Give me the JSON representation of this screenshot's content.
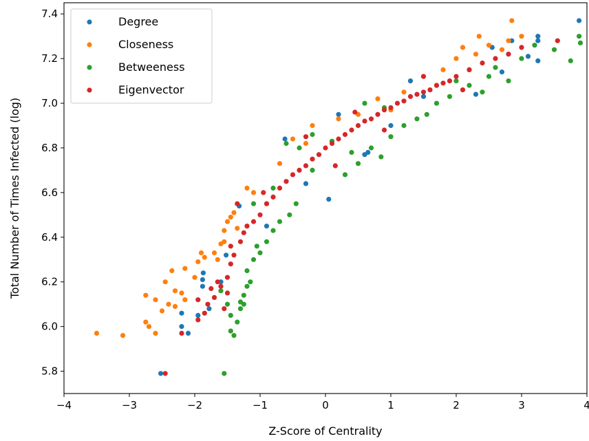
{
  "chart_data": {
    "type": "scatter",
    "title": "",
    "xlabel": "Z-Score of Centrality",
    "ylabel": "Total Number of Times Infected (log)",
    "xlim": [
      -4,
      4
    ],
    "ylim": [
      5.7,
      7.45
    ],
    "xticks": [
      -4,
      -3,
      -2,
      -1,
      0,
      1,
      2,
      3,
      4
    ],
    "xtick_labels": [
      "−4",
      "−3",
      "−2",
      "−1",
      "0",
      "1",
      "2",
      "3",
      "4"
    ],
    "yticks": [
      5.8,
      6.0,
      6.2,
      6.4,
      6.6,
      6.8,
      7.0,
      7.2,
      7.4
    ],
    "ytick_labels": [
      "5.8",
      "6.0",
      "6.2",
      "6.4",
      "6.6",
      "6.8",
      "7.0",
      "7.2",
      "7.4"
    ],
    "grid": false,
    "legend_position": "top-left",
    "series": [
      {
        "name": "Degree",
        "color": "#1f77b4",
        "points": [
          [
            -2.52,
            5.79
          ],
          [
            -2.2,
            6.06
          ],
          [
            -2.2,
            6.0
          ],
          [
            -2.1,
            5.97
          ],
          [
            -1.95,
            6.05
          ],
          [
            -1.88,
            6.18
          ],
          [
            -1.88,
            6.21
          ],
          [
            -1.87,
            6.24
          ],
          [
            -1.78,
            6.08
          ],
          [
            -1.6,
            6.2
          ],
          [
            -1.52,
            6.32
          ],
          [
            -1.32,
            6.54
          ],
          [
            -0.62,
            6.84
          ],
          [
            -0.3,
            6.64
          ],
          [
            0.05,
            6.57
          ],
          [
            0.6,
            6.77
          ],
          [
            0.65,
            6.78
          ],
          [
            1.3,
            7.1
          ],
          [
            1.5,
            7.03
          ],
          [
            2.3,
            7.04
          ],
          [
            2.55,
            7.25
          ],
          [
            2.7,
            7.14
          ],
          [
            2.8,
            7.22
          ],
          [
            2.85,
            7.28
          ],
          [
            3.1,
            7.21
          ],
          [
            3.25,
            7.3
          ],
          [
            3.25,
            7.28
          ],
          [
            3.25,
            7.19
          ],
          [
            3.88,
            7.37
          ],
          [
            0.2,
            6.95
          ],
          [
            -0.9,
            6.45
          ],
          [
            1.0,
            6.9
          ]
        ]
      },
      {
        "name": "Closeness",
        "color": "#ff7f0e",
        "points": [
          [
            -3.5,
            5.97
          ],
          [
            -3.1,
            5.96
          ],
          [
            -2.75,
            6.02
          ],
          [
            -2.7,
            6.0
          ],
          [
            -2.6,
            5.97
          ],
          [
            -2.75,
            6.14
          ],
          [
            -2.6,
            6.12
          ],
          [
            -2.45,
            6.2
          ],
          [
            -2.4,
            6.1
          ],
          [
            -2.3,
            6.16
          ],
          [
            -2.5,
            6.07
          ],
          [
            -2.3,
            6.09
          ],
          [
            -2.35,
            6.25
          ],
          [
            -2.15,
            6.12
          ],
          [
            -2.2,
            6.15
          ],
          [
            -2.15,
            6.26
          ],
          [
            -2.0,
            6.22
          ],
          [
            -1.95,
            6.29
          ],
          [
            -1.9,
            6.33
          ],
          [
            -1.85,
            6.31
          ],
          [
            -1.7,
            6.33
          ],
          [
            -1.65,
            6.3
          ],
          [
            -1.6,
            6.37
          ],
          [
            -1.55,
            6.43
          ],
          [
            -1.5,
            6.47
          ],
          [
            -1.45,
            6.49
          ],
          [
            -1.55,
            6.38
          ],
          [
            -1.4,
            6.51
          ],
          [
            -1.35,
            6.44
          ],
          [
            -1.2,
            6.62
          ],
          [
            -1.1,
            6.6
          ],
          [
            -0.7,
            6.73
          ],
          [
            -0.5,
            6.84
          ],
          [
            -0.2,
            6.9
          ],
          [
            0.2,
            6.93
          ],
          [
            0.8,
            7.02
          ],
          [
            1.2,
            7.05
          ],
          [
            1.5,
            7.12
          ],
          [
            1.8,
            7.15
          ],
          [
            2.0,
            7.2
          ],
          [
            2.1,
            7.25
          ],
          [
            2.3,
            7.22
          ],
          [
            2.35,
            7.3
          ],
          [
            2.5,
            7.26
          ],
          [
            2.7,
            7.24
          ],
          [
            2.8,
            7.28
          ],
          [
            2.85,
            7.37
          ],
          [
            3.0,
            7.3
          ],
          [
            1.0,
            6.97
          ],
          [
            0.5,
            6.95
          ],
          [
            -0.9,
            6.55
          ],
          [
            -1.2,
            6.45
          ],
          [
            1.7,
            7.08
          ],
          [
            2.2,
            7.15
          ],
          [
            -0.3,
            6.82
          ]
        ]
      },
      {
        "name": "Betweeness",
        "color": "#2ca02c",
        "points": [
          [
            -1.55,
            5.79
          ],
          [
            -1.45,
            5.98
          ],
          [
            -1.4,
            5.96
          ],
          [
            -1.35,
            6.02
          ],
          [
            -1.45,
            6.05
          ],
          [
            -1.3,
            6.08
          ],
          [
            -1.25,
            6.1
          ],
          [
            -1.3,
            6.11
          ],
          [
            -1.25,
            6.14
          ],
          [
            -1.2,
            6.18
          ],
          [
            -1.15,
            6.2
          ],
          [
            -1.2,
            6.25
          ],
          [
            -1.1,
            6.3
          ],
          [
            -1.05,
            6.36
          ],
          [
            -1.0,
            6.33
          ],
          [
            -0.9,
            6.38
          ],
          [
            -0.8,
            6.43
          ],
          [
            -0.7,
            6.47
          ],
          [
            -0.55,
            6.5
          ],
          [
            -0.45,
            6.55
          ],
          [
            -0.6,
            6.82
          ],
          [
            -0.4,
            6.8
          ],
          [
            -0.2,
            6.86
          ],
          [
            0.1,
            6.83
          ],
          [
            0.3,
            6.68
          ],
          [
            0.5,
            6.73
          ],
          [
            0.7,
            6.8
          ],
          [
            0.85,
            6.76
          ],
          [
            1.0,
            6.85
          ],
          [
            1.2,
            6.9
          ],
          [
            0.9,
            6.98
          ],
          [
            0.6,
            7.0
          ],
          [
            1.55,
            6.95
          ],
          [
            1.7,
            7.0
          ],
          [
            1.9,
            7.03
          ],
          [
            2.0,
            7.1
          ],
          [
            2.2,
            7.08
          ],
          [
            2.5,
            7.12
          ],
          [
            2.8,
            7.1
          ],
          [
            3.0,
            7.2
          ],
          [
            3.2,
            7.26
          ],
          [
            3.5,
            7.24
          ],
          [
            3.75,
            7.19
          ],
          [
            3.88,
            7.3
          ],
          [
            3.9,
            7.27
          ],
          [
            2.6,
            7.16
          ],
          [
            -0.8,
            6.62
          ],
          [
            -0.2,
            6.7
          ],
          [
            0.4,
            6.78
          ],
          [
            1.4,
            6.93
          ],
          [
            -1.1,
            6.55
          ],
          [
            -1.6,
            6.16
          ],
          [
            -1.5,
            6.1
          ],
          [
            2.4,
            7.05
          ]
        ]
      },
      {
        "name": "Eigenvector",
        "color": "#d62728",
        "points": [
          [
            -2.45,
            5.79
          ],
          [
            -2.2,
            5.97
          ],
          [
            -1.95,
            6.03
          ],
          [
            -1.85,
            6.06
          ],
          [
            -1.95,
            6.12
          ],
          [
            -1.8,
            6.1
          ],
          [
            -1.75,
            6.17
          ],
          [
            -1.7,
            6.13
          ],
          [
            -1.65,
            6.2
          ],
          [
            -1.55,
            6.08
          ],
          [
            -1.5,
            6.15
          ],
          [
            -1.5,
            6.22
          ],
          [
            -1.45,
            6.28
          ],
          [
            -1.4,
            6.32
          ],
          [
            -1.3,
            6.38
          ],
          [
            -1.25,
            6.42
          ],
          [
            -1.2,
            6.45
          ],
          [
            -1.1,
            6.47
          ],
          [
            -1.0,
            6.5
          ],
          [
            -0.9,
            6.55
          ],
          [
            -0.8,
            6.58
          ],
          [
            -0.7,
            6.62
          ],
          [
            -0.6,
            6.65
          ],
          [
            -0.5,
            6.68
          ],
          [
            -0.4,
            6.7
          ],
          [
            -0.3,
            6.72
          ],
          [
            -0.2,
            6.75
          ],
          [
            -0.1,
            6.77
          ],
          [
            0.0,
            6.8
          ],
          [
            0.1,
            6.82
          ],
          [
            0.2,
            6.84
          ],
          [
            0.3,
            6.86
          ],
          [
            0.4,
            6.88
          ],
          [
            0.5,
            6.9
          ],
          [
            0.6,
            6.92
          ],
          [
            0.7,
            6.93
          ],
          [
            0.8,
            6.95
          ],
          [
            0.9,
            6.97
          ],
          [
            1.0,
            6.98
          ],
          [
            1.1,
            7.0
          ],
          [
            1.2,
            7.01
          ],
          [
            1.3,
            7.03
          ],
          [
            1.4,
            7.04
          ],
          [
            1.5,
            7.05
          ],
          [
            1.6,
            7.06
          ],
          [
            1.7,
            7.08
          ],
          [
            1.8,
            7.09
          ],
          [
            1.9,
            7.1
          ],
          [
            2.0,
            7.12
          ],
          [
            2.2,
            7.15
          ],
          [
            2.4,
            7.18
          ],
          [
            2.6,
            7.2
          ],
          [
            2.8,
            7.22
          ],
          [
            3.0,
            7.25
          ],
          [
            3.55,
            7.28
          ],
          [
            -1.35,
            6.55
          ],
          [
            -0.95,
            6.6
          ],
          [
            -0.3,
            6.85
          ],
          [
            0.15,
            6.72
          ],
          [
            0.9,
            6.88
          ],
          [
            1.5,
            7.12
          ],
          [
            -1.6,
            6.18
          ],
          [
            -1.45,
            6.36
          ],
          [
            2.1,
            7.06
          ],
          [
            0.45,
            6.96
          ]
        ]
      }
    ]
  }
}
